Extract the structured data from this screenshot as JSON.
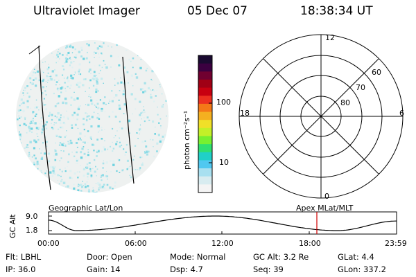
{
  "header": {
    "title": "Ultraviolet Imager",
    "date": "05 Dec 07",
    "time": "18:38:34 UT"
  },
  "image_panel": {
    "caption": "Geographic Lat/Lon"
  },
  "colorbar": {
    "unit_label": "photon cm⁻²s⁻¹",
    "ticks": [
      "100",
      "10"
    ],
    "colors": [
      "#1a0a30",
      "#3b0040",
      "#700030",
      "#a00015",
      "#c80010",
      "#ec3020",
      "#f47818",
      "#f4b020",
      "#f0e028",
      "#c4f028",
      "#78f030",
      "#30e070",
      "#20d0c8",
      "#50c8f0",
      "#a8e0f0",
      "#d8ecf0",
      "#f4f4f4"
    ]
  },
  "polar_plot": {
    "caption": "Apex MLat/MLT",
    "mlt_labels": {
      "top": "12",
      "left": "18",
      "right": "6",
      "bottom": "0"
    },
    "lat_labels": [
      "60",
      "70",
      "80"
    ]
  },
  "altitude_plot": {
    "ylabel": "GC Alt",
    "ymax_label": "9.0",
    "ymin_label": "1.8",
    "time_ticks": [
      "00:00",
      "06:00",
      "12:00",
      "18:00",
      "23:59"
    ],
    "marker_color": "#d00000"
  },
  "info": {
    "flt": "Flt:  LBHL",
    "ip": "IP:  36.0",
    "door": "Door:  Open",
    "gain": "Gain:  14",
    "mode": "Mode:  Normal",
    "dsp": "Dsp:      4.7",
    "gc_alt": "GC Alt:  3.2 Re",
    "seq": "Seq:  39",
    "glat": "GLat:       4.4",
    "glon": "GLon:  337.2"
  }
}
